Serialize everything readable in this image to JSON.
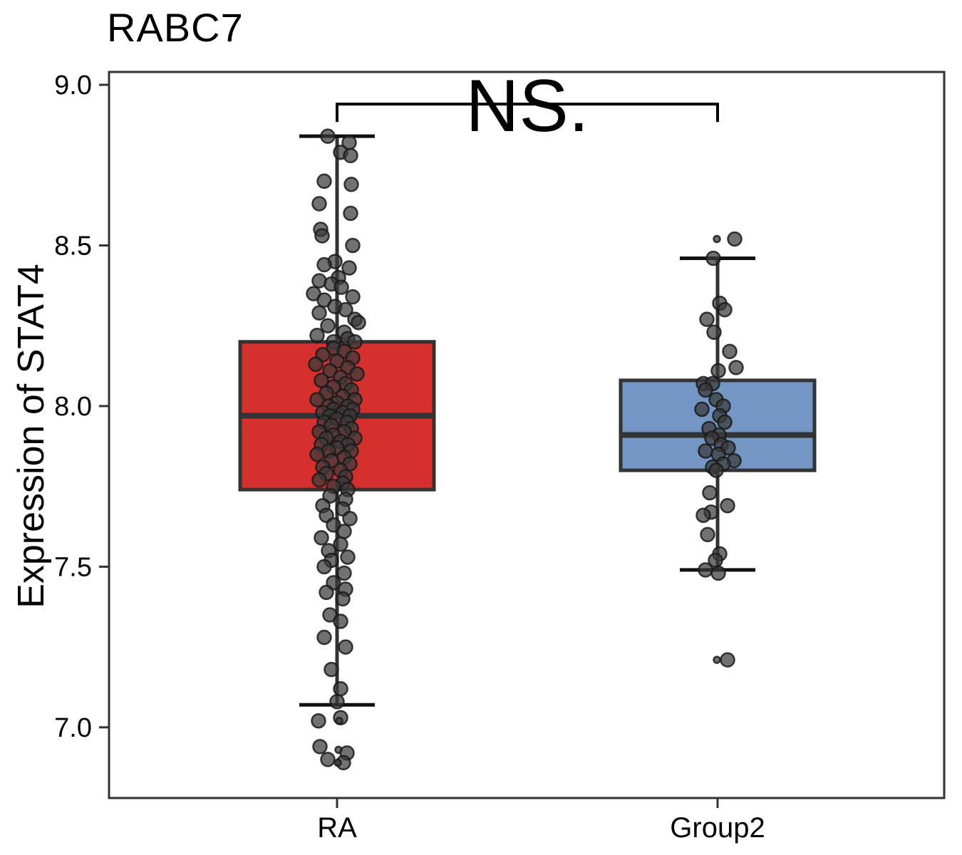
{
  "chart_data": {
    "type": "boxplot",
    "title": "RABC7",
    "ylabel": "Expression of STAT4",
    "xlabel": "",
    "categories": [
      "RA",
      "Group2"
    ],
    "y_ticks": [
      9.0,
      8.5,
      8.0,
      7.5,
      7.0
    ],
    "y_tick_labels": [
      "9.0",
      "8.5",
      "8.0",
      "7.5",
      "7.0"
    ],
    "ylim": [
      6.78,
      9.04
    ],
    "grid": false,
    "legend": "none",
    "significance": {
      "label": "NS.",
      "groups": [
        "RA",
        "Group2"
      ],
      "bar_y": 8.94
    },
    "style": {
      "box_border": "#333333",
      "panel_border": "#333333",
      "point_color": "#3A3A3A",
      "point_opacity": 0.72,
      "text_color": "#000000"
    },
    "series": [
      {
        "name": "RA",
        "fill": "#D5302E",
        "box": {
          "whisker_low": 7.07,
          "q1": 7.74,
          "median": 7.97,
          "q3": 8.2,
          "whisker_high": 8.84
        },
        "points": [
          [
            -13,
            8.84
          ],
          [
            17,
            8.82
          ],
          [
            5,
            8.79
          ],
          [
            19,
            8.78
          ],
          [
            -18,
            8.7
          ],
          [
            20,
            8.69
          ],
          [
            -25,
            8.63
          ],
          [
            19,
            8.6
          ],
          [
            -23,
            8.55
          ],
          [
            -21,
            8.53
          ],
          [
            22,
            8.5
          ],
          [
            -3,
            8.45
          ],
          [
            -18,
            8.44
          ],
          [
            17,
            8.43
          ],
          [
            2,
            8.4
          ],
          [
            -25,
            8.39
          ],
          [
            -8,
            8.38
          ],
          [
            6,
            8.37
          ],
          [
            -33,
            8.35
          ],
          [
            22,
            8.34
          ],
          [
            -18,
            8.33
          ],
          [
            -3,
            8.31
          ],
          [
            12,
            8.3
          ],
          [
            -25,
            8.29
          ],
          [
            25,
            8.27
          ],
          [
            30,
            8.26
          ],
          [
            -13,
            8.25
          ],
          [
            10,
            8.23
          ],
          [
            -28,
            8.22
          ],
          [
            15,
            8.21
          ],
          [
            -5,
            8.2
          ],
          [
            25,
            8.2
          ],
          [
            -5,
            8.18
          ],
          [
            10,
            8.17
          ],
          [
            -20,
            8.16
          ],
          [
            22,
            8.15
          ],
          [
            0,
            8.14
          ],
          [
            -30,
            8.13
          ],
          [
            15,
            8.12
          ],
          [
            -10,
            8.11
          ],
          [
            28,
            8.1
          ],
          [
            5,
            8.09
          ],
          [
            -22,
            8.08
          ],
          [
            12,
            8.07
          ],
          [
            -5,
            8.06
          ],
          [
            20,
            8.05
          ],
          [
            -15,
            8.04
          ],
          [
            8,
            8.03
          ],
          [
            -28,
            8.02
          ],
          [
            25,
            8.02
          ],
          [
            0,
            8.01
          ],
          [
            -12,
            8.0
          ],
          [
            15,
            8.0
          ],
          [
            -5,
            7.99
          ],
          [
            22,
            7.99
          ],
          [
            -20,
            7.98
          ],
          [
            8,
            7.98
          ],
          [
            -10,
            7.97
          ],
          [
            18,
            7.97
          ],
          [
            0,
            7.96
          ],
          [
            -18,
            7.95
          ],
          [
            14,
            7.95
          ],
          [
            -8,
            7.94
          ],
          [
            20,
            7.93
          ],
          [
            -25,
            7.92
          ],
          [
            10,
            7.92
          ],
          [
            -5,
            7.91
          ],
          [
            25,
            7.9
          ],
          [
            -15,
            7.9
          ],
          [
            5,
            7.89
          ],
          [
            -22,
            7.88
          ],
          [
            15,
            7.88
          ],
          [
            0,
            7.87
          ],
          [
            -12,
            7.86
          ],
          [
            20,
            7.86
          ],
          [
            -28,
            7.85
          ],
          [
            10,
            7.84
          ],
          [
            -8,
            7.83
          ],
          [
            18,
            7.82
          ],
          [
            -20,
            7.81
          ],
          [
            5,
            7.8
          ],
          [
            -15,
            7.79
          ],
          [
            12,
            7.78
          ],
          [
            -25,
            7.77
          ],
          [
            8,
            7.76
          ],
          [
            -5,
            7.75
          ],
          [
            15,
            7.74
          ],
          [
            -10,
            7.72
          ],
          [
            12,
            7.71
          ],
          [
            -20,
            7.69
          ],
          [
            8,
            7.68
          ],
          [
            -15,
            7.66
          ],
          [
            18,
            7.65
          ],
          [
            -5,
            7.63
          ],
          [
            10,
            7.61
          ],
          [
            -22,
            7.59
          ],
          [
            5,
            7.57
          ],
          [
            -12,
            7.55
          ],
          [
            15,
            7.53
          ],
          [
            -8,
            7.52
          ],
          [
            -18,
            7.5
          ],
          [
            10,
            7.48
          ],
          [
            -5,
            7.45
          ],
          [
            12,
            7.43
          ],
          [
            -15,
            7.42
          ],
          [
            8,
            7.4
          ],
          [
            -10,
            7.35
          ],
          [
            5,
            7.33
          ],
          [
            -18,
            7.28
          ],
          [
            12,
            7.25
          ],
          [
            -8,
            7.18
          ],
          [
            5,
            7.12
          ],
          [
            0,
            7.08
          ],
          [
            5,
            7.03
          ],
          [
            -26,
            7.02
          ],
          [
            3,
            7.02,
            4.5
          ],
          [
            -24,
            6.94
          ],
          [
            2,
            6.93,
            4.5
          ],
          [
            14,
            6.92
          ],
          [
            -13,
            6.9
          ],
          [
            9,
            6.89
          ],
          [
            1,
            6.89,
            4.5
          ]
        ]
      },
      {
        "name": "Group2",
        "fill": "#7396C4",
        "box": {
          "whisker_low": 7.49,
          "q1": 7.8,
          "median": 7.91,
          "q3": 8.08,
          "whisker_high": 8.46
        },
        "points": [
          [
            -1,
            8.52,
            4.5
          ],
          [
            24,
            8.52
          ],
          [
            -6,
            8.46
          ],
          [
            3,
            8.32
          ],
          [
            10,
            8.3
          ],
          [
            -15,
            8.27
          ],
          [
            -5,
            8.23
          ],
          [
            17,
            8.17
          ],
          [
            26,
            8.12
          ],
          [
            1,
            8.11
          ],
          [
            -20,
            8.07
          ],
          [
            -7,
            8.07
          ],
          [
            -17,
            8.05
          ],
          [
            -2,
            8.02
          ],
          [
            8,
            8.0
          ],
          [
            -22,
            7.99
          ],
          [
            3,
            7.97
          ],
          [
            10,
            7.95
          ],
          [
            -12,
            7.93
          ],
          [
            2,
            7.91
          ],
          [
            -8,
            7.9
          ],
          [
            5,
            7.88
          ],
          [
            15,
            7.87
          ],
          [
            -17,
            7.86
          ],
          [
            1,
            7.85
          ],
          [
            23,
            7.83
          ],
          [
            8,
            7.82
          ],
          [
            -7,
            7.81
          ],
          [
            -2,
            7.8
          ],
          [
            -11,
            7.73
          ],
          [
            14,
            7.69
          ],
          [
            -9,
            7.67
          ],
          [
            -20,
            7.66
          ],
          [
            -14,
            7.6
          ],
          [
            3,
            7.54
          ],
          [
            -3,
            7.52
          ],
          [
            -17,
            7.49
          ],
          [
            1,
            7.48
          ],
          [
            -1,
            7.21,
            4.5
          ],
          [
            14,
            7.21
          ]
        ]
      }
    ]
  }
}
